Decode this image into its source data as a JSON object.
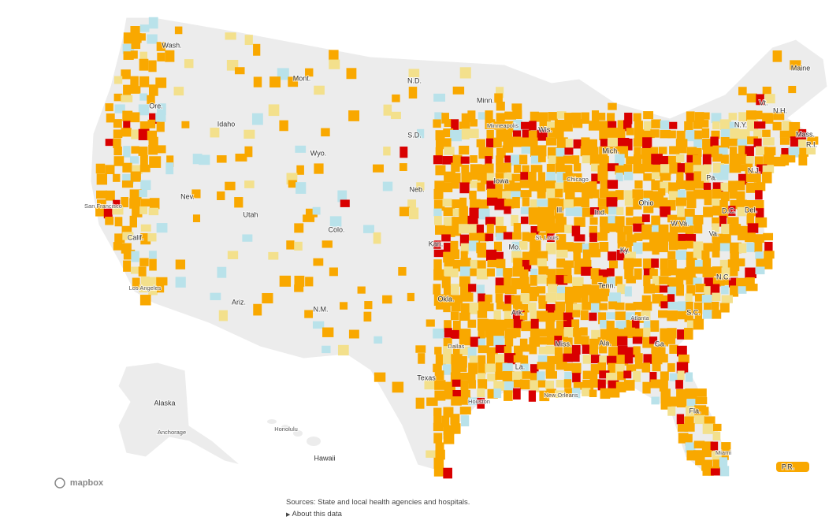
{
  "map": {
    "states": [
      "Wash.",
      "Mont.",
      "N.D.",
      "Minn.",
      "Maine",
      "Vt.",
      "N.H.",
      "Ore.",
      "Idaho",
      "Wyo.",
      "S.D.",
      "Wis.",
      "Mich.",
      "N.Y.",
      "Mass.",
      "R.I.",
      "Nev.",
      "Utah",
      "Colo.",
      "Neb.",
      "Iowa",
      "Ill.",
      "Ind.",
      "Ohio",
      "Pa.",
      "N.J.",
      "D.C.",
      "Del.",
      "Calif.",
      "Kan.",
      "Mo.",
      "Ky.",
      "W.Va.",
      "Va.",
      "N.C.",
      "Tenn.",
      "Ariz.",
      "N.M.",
      "Okla.",
      "Ark.",
      "S.C.",
      "Miss.",
      "Ala.",
      "Ga.",
      "Texas",
      "La.",
      "Fla.",
      "Alaska",
      "Hawaii",
      "P.R."
    ],
    "cities": [
      "Minneapolis",
      "Chicago",
      "San Francisco",
      "St. Louis",
      "Los Angeles",
      "Atlanta",
      "Dallas",
      "Houston",
      "New Orleans",
      "Miami",
      "Anchorage",
      "Honolulu"
    ],
    "attribution": "mapbox"
  },
  "footer": {
    "sources": "Sources: State and local health agencies and hospitals.",
    "about": "About this data"
  }
}
